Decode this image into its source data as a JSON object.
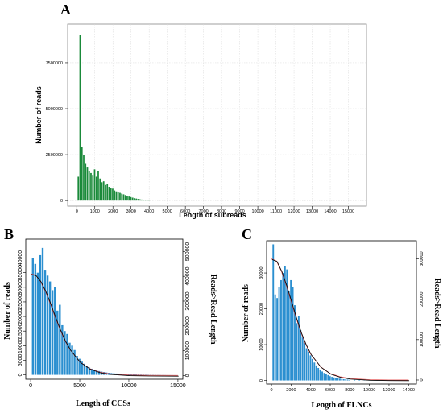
{
  "panels": {
    "A": {
      "letter": "A"
    },
    "B": {
      "letter": "B"
    },
    "C": {
      "letter": "C"
    }
  },
  "colors": {
    "histogram_a": "#1a8a3a",
    "histogram_bc": "#2b8fd0",
    "curve_fit": "#000000",
    "curve_red": "#e03030",
    "grid": "#d8d8d8"
  },
  "chart_data": [
    {
      "id": "A",
      "type": "bar",
      "xlabel": "Length of subreads",
      "ylabel": "Number of reads",
      "xlim": [
        -500,
        16000
      ],
      "ylim": [
        -300000,
        9600000
      ],
      "grid": true,
      "x_ticks": [
        0,
        1000,
        2000,
        3000,
        4000,
        5000,
        6000,
        7000,
        8000,
        9000,
        10000,
        11000,
        12000,
        13000,
        14000,
        15000
      ],
      "y_ticks": [
        0,
        2500000,
        5000000,
        7500000
      ],
      "bin_width": 100,
      "x": [
        100,
        200,
        300,
        400,
        500,
        600,
        700,
        800,
        900,
        1000,
        1100,
        1200,
        1300,
        1400,
        1500,
        1600,
        1700,
        1800,
        1900,
        2000,
        2100,
        2200,
        2300,
        2400,
        2500,
        2600,
        2700,
        2800,
        2900,
        3000,
        3100,
        3200,
        3300,
        3400,
        3500,
        3600,
        3700,
        3800,
        3900,
        4000
      ],
      "values": [
        1300000,
        9000000,
        2900000,
        2500000,
        2000000,
        1800000,
        1600000,
        1500000,
        1400000,
        1700000,
        1300000,
        1600000,
        1200000,
        1000000,
        1050000,
        850000,
        900000,
        750000,
        700000,
        650000,
        550000,
        500000,
        450000,
        420000,
        380000,
        340000,
        300000,
        260000,
        220000,
        190000,
        160000,
        130000,
        110000,
        90000,
        70000,
        55000,
        40000,
        30000,
        20000,
        10000
      ]
    },
    {
      "id": "B",
      "type": "bar",
      "xlabel": "Length of CCSs",
      "ylabel": "Number of reads",
      "y2label": "Reads>Read Length",
      "xlim": [
        -500,
        15500
      ],
      "ylim": [
        -1500,
        46500
      ],
      "y2lim": [
        -15000,
        550000
      ],
      "x_ticks": [
        0,
        5000,
        10000,
        15000
      ],
      "y_ticks": [
        0,
        5000,
        10000,
        15000,
        20000,
        25000,
        30000,
        35000,
        40000
      ],
      "y2_ticks": [
        0,
        100000,
        200000,
        300000,
        400000,
        500000
      ],
      "bin_width": 250,
      "x": [
        250,
        500,
        750,
        1000,
        1250,
        1500,
        1750,
        2000,
        2250,
        2500,
        2750,
        3000,
        3250,
        3500,
        3750,
        4000,
        4250,
        4500,
        4750,
        5000,
        5250,
        5500,
        5750,
        6000,
        6250,
        6500,
        6750,
        7000,
        7250,
        7500,
        7750,
        8000,
        8250,
        8500,
        8750,
        9000,
        9250,
        9500,
        9750,
        10000,
        10250,
        10500,
        10750,
        11000,
        11250,
        11500,
        11750,
        12000,
        12250,
        12500,
        12750,
        13000,
        13250,
        13500,
        13750,
        14000,
        14250,
        14500,
        14750
      ],
      "values": [
        40000,
        38000,
        35000,
        41000,
        43500,
        36000,
        34000,
        32000,
        29000,
        30000,
        22000,
        24000,
        17000,
        15000,
        14000,
        11000,
        10000,
        8500,
        6500,
        5500,
        4500,
        3800,
        3000,
        2500,
        2100,
        1800,
        1500,
        1300,
        1100,
        950,
        800,
        700,
        600,
        520,
        450,
        380,
        320,
        270,
        230,
        200,
        170,
        150,
        130,
        110,
        95,
        85,
        75,
        65,
        55,
        48,
        42,
        36,
        31,
        27,
        23,
        19,
        16,
        13,
        10
      ],
      "curve_reads_gt_length": {
        "x": [
          0,
          500,
          1000,
          1500,
          2000,
          2500,
          3000,
          3500,
          4000,
          5000,
          6000,
          7000,
          8000,
          10000,
          12000,
          15000
        ],
        "values": [
          410000,
          405000,
          380000,
          340000,
          290000,
          235000,
          185000,
          140000,
          105000,
          55000,
          28000,
          14000,
          7000,
          2000,
          600,
          0
        ]
      }
    },
    {
      "id": "C",
      "type": "bar",
      "xlabel": "Length of FLNCs",
      "ylabel": "Number of reads",
      "y2label": "Reads>Read Length",
      "xlim": [
        -500,
        14800
      ],
      "ylim": [
        -1000,
        39000
      ],
      "y2lim": [
        -10000,
        345000
      ],
      "x_ticks": [
        0,
        2000,
        4000,
        6000,
        8000,
        10000,
        12000,
        14000
      ],
      "y_ticks": [
        0,
        10000,
        20000,
        30000
      ],
      "y2_ticks": [
        0,
        100000,
        200000,
        300000
      ],
      "bin_width": 200,
      "x": [
        200,
        400,
        600,
        800,
        1000,
        1200,
        1400,
        1600,
        1800,
        2000,
        2200,
        2400,
        2600,
        2800,
        3000,
        3200,
        3400,
        3600,
        3800,
        4000,
        4200,
        4400,
        4600,
        4800,
        5000,
        5200,
        5400,
        5600,
        5800,
        6000,
        6200,
        6400,
        6600,
        6800,
        7000,
        7200,
        7400,
        7600,
        7800,
        8000,
        8500,
        9000,
        9500,
        10000,
        10500,
        11000,
        11500,
        12000,
        12500,
        13000,
        13500,
        14000
      ],
      "values": [
        38000,
        24000,
        23000,
        26000,
        28000,
        30000,
        32000,
        31000,
        25000,
        28000,
        26000,
        21000,
        16000,
        18000,
        14000,
        12000,
        10500,
        9000,
        8000,
        7000,
        6000,
        5000,
        4200,
        3500,
        3000,
        2500,
        2100,
        1800,
        1500,
        1200,
        1000,
        850,
        700,
        600,
        500,
        420,
        360,
        300,
        250,
        200,
        160,
        120,
        90,
        70,
        55,
        40,
        30,
        25,
        20,
        15,
        10,
        8
      ],
      "curve_reads_gt_length": {
        "x": [
          0,
          500,
          1000,
          1500,
          2000,
          2500,
          3000,
          3500,
          4000,
          5000,
          6000,
          7000,
          8000,
          10000,
          12000,
          14000
        ],
        "values": [
          300000,
          295000,
          270000,
          235000,
          195000,
          155000,
          118000,
          88000,
          64000,
          33000,
          16000,
          8000,
          3800,
          900,
          200,
          0
        ]
      }
    }
  ]
}
